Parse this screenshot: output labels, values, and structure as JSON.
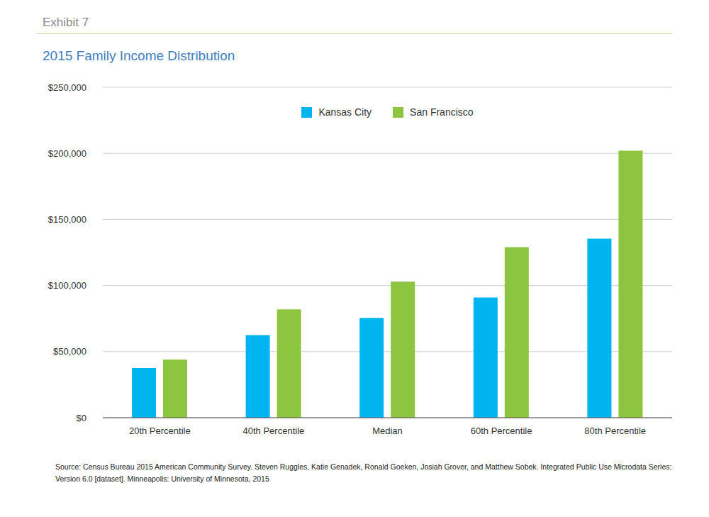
{
  "annotations": [
    "Exhibit 7",
    "Source: Census Bureau 2015 American Community Survey. Steven Ruggles, Katie Genadek, Ronald Goeken, Josiah Grover, and Matthew Sobek. Integrated Public Use Microdata Series: Version 6.0 [dataset]. Minneapolis: University of Minnesota, 2015"
  ],
  "chart_data": {
    "type": "bar",
    "title": "2015 Family Income Distribution",
    "categories": [
      "20th Percentile",
      "40th Percentile",
      "Median",
      "60th Percentile",
      "80th Percentile"
    ],
    "series": [
      {
        "name": "Kansas City",
        "color": "#00b4ef",
        "values": [
          37500,
          62500,
          75500,
          91000,
          135500
        ]
      },
      {
        "name": "San Francisco",
        "color": "#8dc540",
        "values": [
          44000,
          82000,
          103000,
          129000,
          202000
        ]
      }
    ],
    "ylim": [
      0,
      250000
    ],
    "yticks": [
      {
        "value": 0,
        "label": "$0"
      },
      {
        "value": 50000,
        "label": "$50,000"
      },
      {
        "value": 100000,
        "label": "$100,000"
      },
      {
        "value": 150000,
        "label": "$150,000"
      },
      {
        "value": 200000,
        "label": "$200,000"
      },
      {
        "value": 250000,
        "label": "$250,000"
      }
    ],
    "grid": true,
    "legend": "top"
  }
}
